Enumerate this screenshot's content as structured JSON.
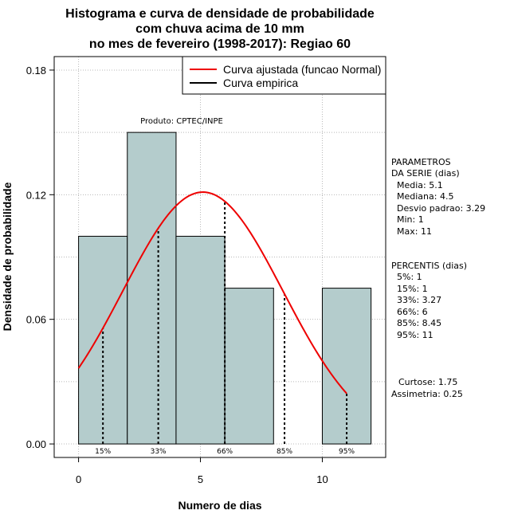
{
  "chart_data": {
    "type": "bar",
    "title": [
      "Histograma e curva de densidade de probabilidade",
      "com chuva acima de 10 mm",
      "no mes de fevereiro (1998-2017): Regiao 60"
    ],
    "xlabel": "Numero de dias",
    "ylabel": "Densidade de probabilidade",
    "xlim": [
      -1,
      12.6
    ],
    "ylim": [
      -0.0065,
      0.1865
    ],
    "x_ticks": [
      0,
      5,
      10
    ],
    "x_tick_labels": [
      "0",
      "5",
      "10"
    ],
    "y_ticks": [
      0,
      0.06,
      0.12,
      0.18
    ],
    "y_tick_labels": [
      "0.00",
      "0.06",
      "0.12",
      "0.18"
    ],
    "grid": true,
    "bins": [
      {
        "x0": 0,
        "x1": 2,
        "density": 0.1
      },
      {
        "x0": 2,
        "x1": 4,
        "density": 0.15
      },
      {
        "x0": 4,
        "x1": 6,
        "density": 0.1
      },
      {
        "x0": 6,
        "x1": 8,
        "density": 0.075
      },
      {
        "x0": 8,
        "x1": 10,
        "density": 0
      },
      {
        "x0": 10,
        "x1": 12,
        "density": 0.075
      }
    ],
    "bar_color": "#b4cccc",
    "curve": {
      "name": "Curva ajustada (funcao Normal)",
      "color": "#ee0000",
      "mean": 5.1,
      "sd": 3.29,
      "x_range": [
        0,
        11
      ]
    },
    "percentile_markers": [
      {
        "label": "15%",
        "x": 1
      },
      {
        "label": "33%",
        "x": 3.27
      },
      {
        "label": "66%",
        "x": 6
      },
      {
        "label": "85%",
        "x": 8.45
      },
      {
        "label": "95%",
        "x": 11
      }
    ],
    "legend": {
      "position": "top-right",
      "entries": [
        {
          "label": "Curva ajustada (funcao Normal)",
          "color": "#ee0000"
        },
        {
          "label": "Curva empirica",
          "color": "#000000"
        }
      ]
    },
    "annotation": "Produto: CPTEC/INPE"
  },
  "parametros": {
    "heading": [
      "PARAMETROS",
      "DA SERIE (dias)"
    ],
    "lines": [
      "Media: 5.1",
      "Mediana: 4.5",
      "Desvio padrao: 3.29",
      "Min: 1",
      "Max: 11"
    ]
  },
  "percentis": {
    "heading": "PERCENTIS (dias)",
    "lines": [
      "5%: 1",
      "15%: 1",
      "33%: 3.27",
      "66%: 6",
      "85%: 8.45",
      "95%: 11"
    ]
  },
  "shape": {
    "lines": [
      "Curtose: 1.75",
      "Assimetria: 0.25"
    ]
  }
}
